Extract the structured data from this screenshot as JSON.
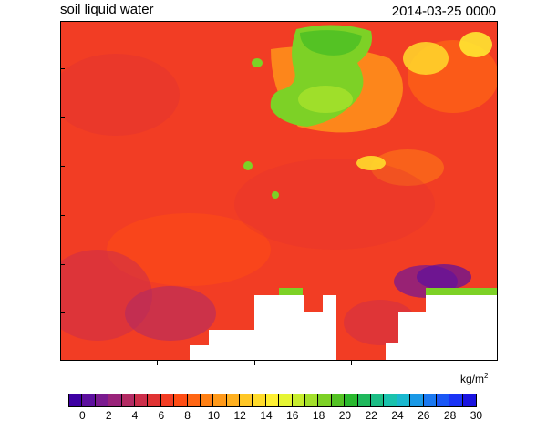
{
  "title": "soil liquid water",
  "timestamp": "2014-03-25 0000",
  "units": {
    "base": "kg/m",
    "exponent": "2"
  },
  "colorbar": {
    "colors": [
      "#3d00a3",
      "#5c0f9e",
      "#7a1a8f",
      "#99237a",
      "#b32b63",
      "#cc2e4a",
      "#e03333",
      "#f23d24",
      "#ff4d14",
      "#ff6614",
      "#ff8014",
      "#ff9919",
      "#ffb01f",
      "#ffc726",
      "#ffdb2b",
      "#fff033",
      "#e6f533",
      "#c7ed2e",
      "#a3e02b",
      "#7dd126",
      "#54c224",
      "#29b82e",
      "#1fb85c",
      "#1cbd85",
      "#1ac2ad",
      "#1ab8cf",
      "#1a99e6",
      "#1a78f0",
      "#1a57f5",
      "#1a33f5",
      "#1a14e0"
    ],
    "labels": [
      "0",
      "2",
      "4",
      "6",
      "8",
      "10",
      "12",
      "14",
      "16",
      "18",
      "20",
      "22",
      "24",
      "26",
      "28",
      "30"
    ]
  },
  "legend_colors": {
    "missing": "#ffffff",
    "background_field": "#f5401e"
  }
}
